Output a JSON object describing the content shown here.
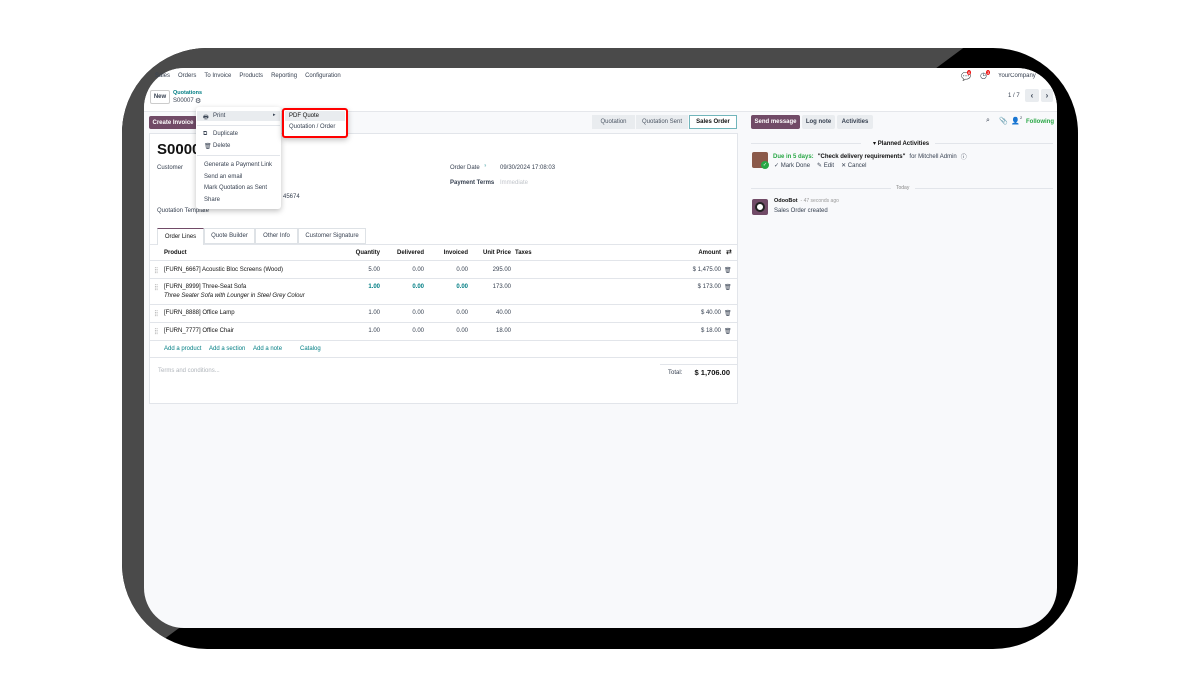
{
  "nav": {
    "items": [
      "Sales",
      "Orders",
      "To Invoice",
      "Products",
      "Reporting",
      "Configuration"
    ],
    "company": "YourCompany",
    "chat_badge": "6",
    "activity_badge": "3"
  },
  "control": {
    "new_label": "New",
    "breadcrumb": "Quotations",
    "record": "S00007",
    "pager": "1 / 7"
  },
  "actions": {
    "create_invoice": "Create Invoice"
  },
  "status": {
    "steps": [
      "Quotation",
      "Quotation Sent",
      "Sales Order"
    ],
    "active": "Sales Order"
  },
  "gear_menu": {
    "print": "Print",
    "duplicate": "Duplicate",
    "delete": "Delete",
    "generate_link": "Generate a Payment Link",
    "send_email": "Send an email",
    "mark_sent": "Mark Quotation as Sent",
    "share": "Share"
  },
  "print_menu": {
    "items": [
      "PDF Quote",
      "Quotation / Order"
    ]
  },
  "form": {
    "title": "S0000",
    "customer_label": "Customer",
    "order_date_label": "Order Date",
    "order_date": "09/30/2024 17:08:03",
    "payment_terms_label": "Payment Terms",
    "payment_terms_placeholder": "Immediate",
    "phone_fragment": "45674",
    "template_label": "Quotation Template",
    "tabs": [
      "Order Lines",
      "Quote Builder",
      "Other Info",
      "Customer Signature"
    ],
    "columns": {
      "product": "Product",
      "quantity": "Quantity",
      "delivered": "Delivered",
      "invoiced": "Invoiced",
      "unit_price": "Unit Price",
      "taxes": "Taxes",
      "amount": "Amount"
    },
    "lines": [
      {
        "product": "[FURN_6667] Acoustic Bloc Screens (Wood)",
        "desc": "",
        "qty": "5.00",
        "delivered": "0.00",
        "invoiced": "0.00",
        "price": "295.00",
        "amount": "$ 1,475.00"
      },
      {
        "product": "[FURN_8999] Three-Seat Sofa",
        "desc": "Three Seater Sofa with Lounger in Steel Grey Colour",
        "qty": "1.00",
        "delivered": "0.00",
        "invoiced": "0.00",
        "price": "173.00",
        "amount": "$ 173.00"
      },
      {
        "product": "[FURN_8888] Office Lamp",
        "desc": "",
        "qty": "1.00",
        "delivered": "0.00",
        "invoiced": "0.00",
        "price": "40.00",
        "amount": "$ 40.00"
      },
      {
        "product": "[FURN_7777] Office Chair",
        "desc": "",
        "qty": "1.00",
        "delivered": "0.00",
        "invoiced": "0.00",
        "price": "18.00",
        "amount": "$ 18.00"
      }
    ],
    "add_links": [
      "Add a product",
      "Add a section",
      "Add a note",
      "Catalog"
    ],
    "terms_placeholder": "Terms and conditions...",
    "total_label": "Total:",
    "total": "$ 1,706.00"
  },
  "chatter": {
    "send_message": "Send message",
    "log_note": "Log note",
    "activities": "Activities",
    "followers_count": "2",
    "following": "Following",
    "planned": "Planned Activities",
    "due": "Due in 5 days:",
    "activity": "\"Check delivery requirements\"",
    "assignee": "for Mitchell Admin",
    "mark_done": "Mark Done",
    "edit": "Edit",
    "cancel": "Cancel",
    "today": "Today",
    "author": "OdooBot",
    "time": "- 47 seconds ago",
    "message": "Sales Order created"
  },
  "colors": {
    "brand": "#714b67",
    "link": "#017e84",
    "highlight": "#ff0000",
    "success": "#28a745"
  }
}
